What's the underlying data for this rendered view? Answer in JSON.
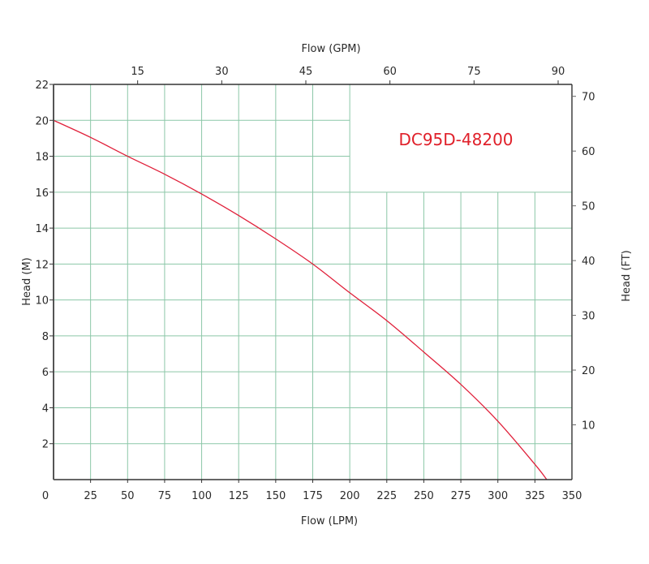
{
  "chart_data": {
    "type": "line",
    "title": "DC95D-48200",
    "xlabel": "Flow (LPM)",
    "ylabel": "Head (M)",
    "x2label": "Flow (GPM)",
    "y2label": "Head (FT)",
    "xlim": [
      0,
      350
    ],
    "ylim": [
      0,
      22
    ],
    "x_ticks": [
      0,
      25,
      50,
      75,
      100,
      125,
      150,
      175,
      200,
      225,
      250,
      275,
      300,
      325,
      350
    ],
    "y_ticks": [
      2,
      4,
      6,
      8,
      10,
      12,
      14,
      16,
      18,
      20,
      22
    ],
    "x2_ticks": [
      15,
      30,
      45,
      60,
      75,
      90
    ],
    "y2_ticks": [
      10,
      20,
      30,
      40,
      50,
      60,
      70
    ],
    "grid": true,
    "legend": null,
    "series": [
      {
        "name": "DC95D-48200",
        "color": "#e0203a",
        "x": [
          0,
          25,
          50,
          75,
          100,
          125,
          150,
          175,
          200,
          225,
          250,
          275,
          300,
          325,
          333
        ],
        "y": [
          20.0,
          19.05,
          18.0,
          17.0,
          15.9,
          14.7,
          13.4,
          12.0,
          10.4,
          8.85,
          7.1,
          5.3,
          3.25,
          0.85,
          0.0
        ]
      }
    ]
  },
  "colors": {
    "grid": "#8cc7a8",
    "axis": "#333333",
    "curve": "#e0203a",
    "label": "#e0202a"
  }
}
